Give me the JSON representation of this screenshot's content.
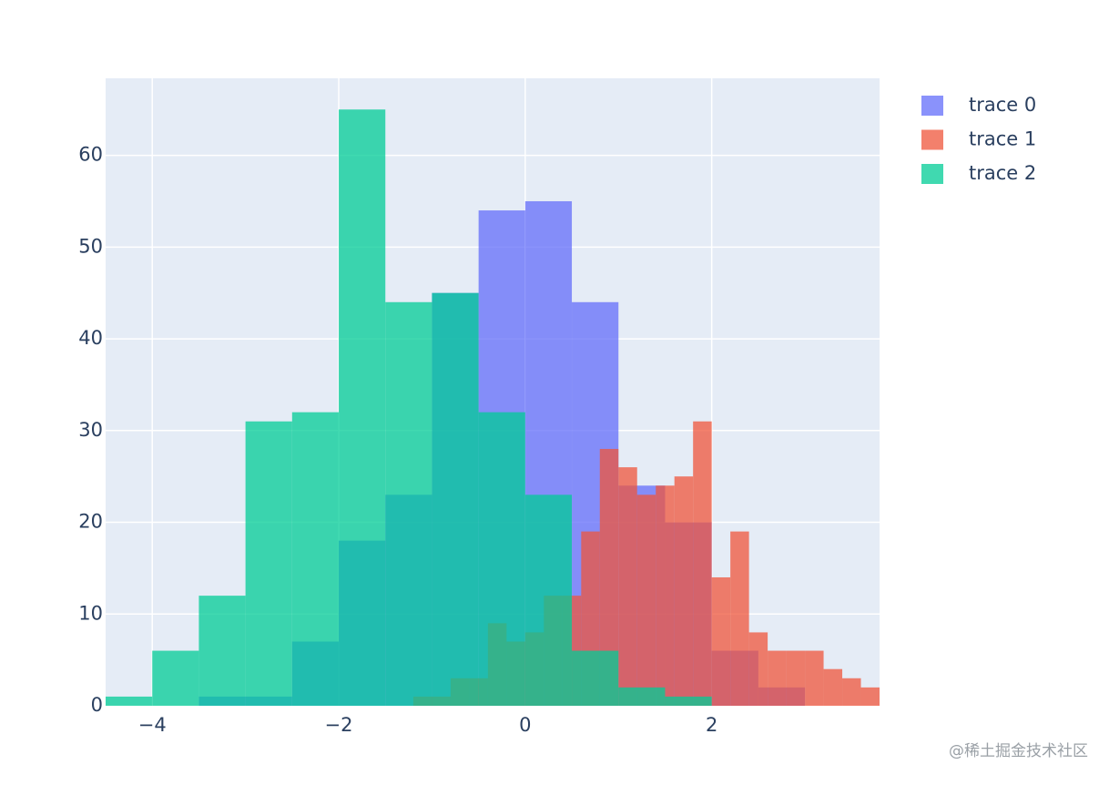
{
  "chart_data": {
    "type": "histogram",
    "barmode": "overlay",
    "opacity": 0.75,
    "grid": true,
    "xlim": [
      -4.5,
      3.8
    ],
    "ylim": [
      0,
      68.4
    ],
    "xticks": [
      {
        "value": -4,
        "label": "−4"
      },
      {
        "value": -2,
        "label": "−2"
      },
      0,
      2
    ],
    "yticks": [
      0,
      10,
      20,
      30,
      40,
      50,
      60
    ],
    "series": [
      {
        "name": "trace 0",
        "color": "#636efa",
        "bins": [
          -3.5,
          -3,
          -2.5,
          -2,
          -1.5,
          -1,
          -0.5,
          0,
          0.5,
          1,
          1.5,
          2,
          2.5,
          3
        ],
        "values": [
          1,
          1,
          7,
          18,
          23,
          45,
          54,
          55,
          44,
          24,
          20,
          6,
          2
        ]
      },
      {
        "name": "trace 1",
        "color": "#ef553b",
        "bins": [
          -1.2,
          -1.0,
          -0.8,
          -0.6,
          -0.4,
          -0.2,
          0,
          0.2,
          0.4,
          0.6,
          0.8,
          1.0,
          1.2,
          1.4,
          1.6,
          1.8,
          2.0,
          2.2,
          2.4,
          2.6,
          2.8,
          3.0,
          3.2,
          3.4,
          3.6,
          3.8
        ],
        "values": [
          1,
          1,
          3,
          3,
          9,
          7,
          8,
          12,
          12,
          19,
          28,
          26,
          23,
          24,
          25,
          31,
          14,
          19,
          8,
          6,
          6,
          6,
          4,
          3,
          2
        ]
      },
      {
        "name": "trace 2",
        "color": "#00cc96",
        "bins": [
          -4.5,
          -4,
          -3.5,
          -3,
          -2.5,
          -2,
          -1.5,
          -1,
          -0.5,
          0,
          0.5,
          1,
          1.5,
          2
        ],
        "values": [
          1,
          6,
          12,
          31,
          32,
          65,
          44,
          45,
          32,
          23,
          6,
          2,
          1
        ]
      }
    ]
  },
  "watermark": "@稀土掘金技术社区"
}
